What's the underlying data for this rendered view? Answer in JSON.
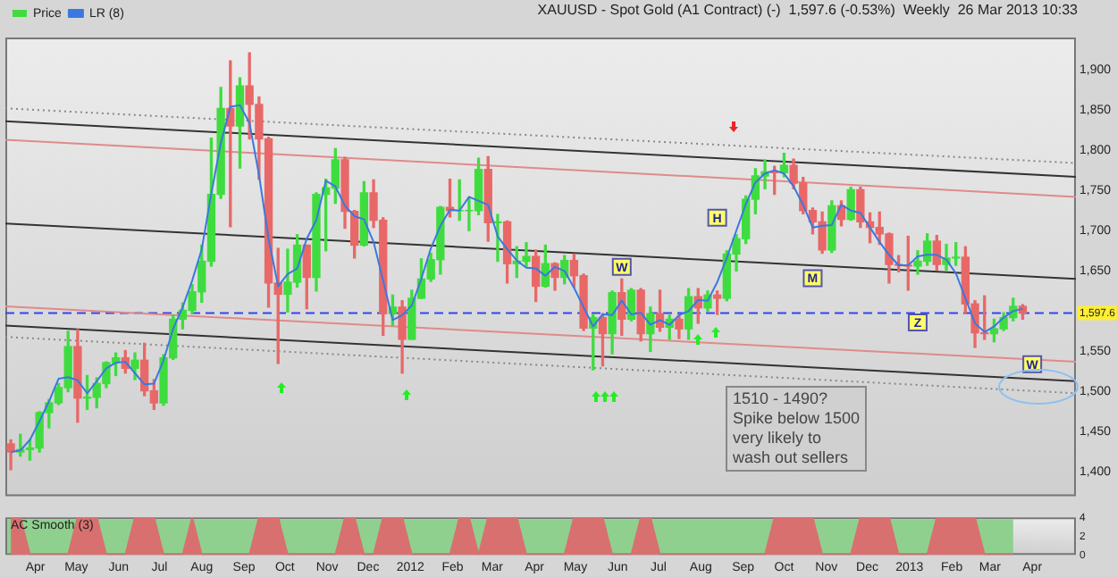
{
  "chart_data": [
    {
      "type": "candlestick",
      "title": "XAUUSD - Spot Gold (A1 Contract) (-)  1,597.6 (-0.53%)  Weekly  26 Mar 2013 10:33",
      "x": [
        "2011-03-14",
        "2011-03-21",
        "2011-03-28",
        "2011-04-04",
        "2011-04-11",
        "2011-04-18",
        "2011-04-25",
        "2011-05-02",
        "2011-05-09",
        "2011-05-16",
        "2011-05-23",
        "2011-05-30",
        "2011-06-06",
        "2011-06-13",
        "2011-06-20",
        "2011-06-27",
        "2011-07-04",
        "2011-07-11",
        "2011-07-18",
        "2011-07-25",
        "2011-08-01",
        "2011-08-08",
        "2011-08-15",
        "2011-08-22",
        "2011-08-29",
        "2011-09-05",
        "2011-09-12",
        "2011-09-19",
        "2011-09-26",
        "2011-10-03",
        "2011-10-10",
        "2011-10-17",
        "2011-10-24",
        "2011-10-31",
        "2011-11-07",
        "2011-11-14",
        "2011-11-21",
        "2011-11-28",
        "2011-12-05",
        "2011-12-12",
        "2011-12-19",
        "2011-12-26",
        "2012-01-02",
        "2012-01-09",
        "2012-01-16",
        "2012-01-23",
        "2012-01-30",
        "2012-02-06",
        "2012-02-13",
        "2012-02-20",
        "2012-02-27",
        "2012-03-05",
        "2012-03-12",
        "2012-03-19",
        "2012-03-26",
        "2012-04-02",
        "2012-04-09",
        "2012-04-16",
        "2012-04-23",
        "2012-04-30",
        "2012-05-07",
        "2012-05-14",
        "2012-05-21",
        "2012-05-28",
        "2012-06-04",
        "2012-06-11",
        "2012-06-18",
        "2012-06-25",
        "2012-07-02",
        "2012-07-09",
        "2012-07-16",
        "2012-07-23",
        "2012-07-30",
        "2012-08-06",
        "2012-08-13",
        "2012-08-20",
        "2012-08-27",
        "2012-09-03",
        "2012-09-10",
        "2012-09-17",
        "2012-09-24",
        "2012-10-01",
        "2012-10-08",
        "2012-10-15",
        "2012-10-22",
        "2012-10-29",
        "2012-11-05",
        "2012-11-12",
        "2012-11-19",
        "2012-11-26",
        "2012-12-03",
        "2012-12-10",
        "2012-12-17",
        "2012-12-24",
        "2012-12-31",
        "2013-01-07",
        "2013-01-14",
        "2013-01-21",
        "2013-01-28",
        "2013-02-04",
        "2013-02-11",
        "2013-02-18",
        "2013-02-25",
        "2013-03-04",
        "2013-03-11",
        "2013-03-18",
        "2013-03-25"
      ],
      "series": [
        {
          "name": "Price",
          "colors": [
            "#e86868",
            "#3fdc3f",
            "#3fdc3f",
            "#3fdc3f",
            "#3fdc3f",
            "#3fdc3f",
            "#3fdc3f",
            "#e86868",
            "#3fdc3f",
            "#3fdc3f",
            "#3fdc3f",
            "#3fdc3f",
            "#e86868",
            "#3fdc3f",
            "#e86868",
            "#e86868",
            "#3fdc3f",
            "#3fdc3f",
            "#3fdc3f",
            "#3fdc3f",
            "#3fdc3f",
            "#3fdc3f",
            "#3fdc3f",
            "#e86868",
            "#3fdc3f",
            "#e86868",
            "#e86868",
            "#e86868",
            "#e86868",
            "#3fdc3f",
            "#3fdc3f",
            "#e86868",
            "#3fdc3f",
            "#3fdc3f",
            "#3fdc3f",
            "#e86868",
            "#e86868",
            "#3fdc3f",
            "#e86868",
            "#e86868",
            "#3fdc3f",
            "#e86868",
            "#3fdc3f",
            "#3fdc3f",
            "#3fdc3f",
            "#3fdc3f",
            "#e86868",
            "#3fdc3f",
            "#3fdc3f",
            "#3fdc3f",
            "#e86868",
            "#3fdc3f",
            "#e86868",
            "#3fdc3f",
            "#3fdc3f",
            "#e86868",
            "#3fdc3f",
            "#e86868",
            "#3fdc3f",
            "#e86868",
            "#e86868",
            "#3fdc3f",
            "#e86868",
            "#3fdc3f",
            "#e86868",
            "#3fdc3f",
            "#e86868",
            "#3fdc3f",
            "#e86868",
            "#3fdc3f",
            "#e86868",
            "#3fdc3f",
            "#e86868",
            "#3fdc3f",
            "#e86868",
            "#3fdc3f",
            "#3fdc3f",
            "#3fdc3f",
            "#3fdc3f",
            "#3fdc3f",
            "#e86868",
            "#3fdc3f",
            "#e86868",
            "#e86868",
            "#e86868",
            "#e86868",
            "#3fdc3f",
            "#e86868",
            "#3fdc3f",
            "#e86868",
            "#e86868",
            "#e86868",
            "#e86868",
            "#e86868",
            "#e86868",
            "#3fdc3f",
            "#3fdc3f",
            "#e86868",
            "#3fdc3f",
            "#3fdc3f",
            "#e86868",
            "#e86868",
            "#e86868",
            "#3fdc3f",
            "#3fdc3f",
            "#3fdc3f",
            "#e86868"
          ],
          "ohlc": [
            [
              1435,
              1440,
              1403,
              1425
            ],
            [
              1425,
              1447,
              1420,
              1428
            ],
            [
              1428,
              1440,
              1415,
              1430
            ],
            [
              1430,
              1475,
              1425,
              1474
            ],
            [
              1474,
              1490,
              1455,
              1486
            ],
            [
              1486,
              1510,
              1484,
              1505
            ],
            [
              1505,
              1575,
              1500,
              1556
            ],
            [
              1556,
              1577,
              1462,
              1492
            ],
            [
              1492,
              1520,
              1478,
              1493
            ],
            [
              1493,
              1517,
              1480,
              1510
            ],
            [
              1510,
              1537,
              1505,
              1536
            ],
            [
              1536,
              1548,
              1520,
              1542
            ],
            [
              1542,
              1551,
              1523,
              1529
            ],
            [
              1529,
              1548,
              1515,
              1539
            ],
            [
              1539,
              1560,
              1495,
              1501
            ],
            [
              1501,
              1515,
              1478,
              1486
            ],
            [
              1486,
              1546,
              1483,
              1542
            ],
            [
              1542,
              1595,
              1540,
              1590
            ],
            [
              1590,
              1610,
              1578,
              1601
            ],
            [
              1601,
              1633,
              1597,
              1624
            ],
            [
              1624,
              1682,
              1611,
              1662
            ],
            [
              1662,
              1815,
              1656,
              1745
            ],
            [
              1745,
              1878,
              1740,
              1852
            ],
            [
              1852,
              1911,
              1705,
              1830
            ],
            [
              1830,
              1890,
              1778,
              1880
            ],
            [
              1880,
              1921,
              1814,
              1857
            ],
            [
              1857,
              1866,
              1764,
              1814
            ],
            [
              1814,
              1816,
              1605,
              1635
            ],
            [
              1635,
              1678,
              1535,
              1621
            ],
            [
              1621,
              1677,
              1599,
              1636
            ],
            [
              1636,
              1695,
              1630,
              1682
            ],
            [
              1682,
              1682,
              1603,
              1642
            ],
            [
              1642,
              1747,
              1625,
              1745
            ],
            [
              1745,
              1764,
              1675,
              1753
            ],
            [
              1753,
              1802,
              1734,
              1788
            ],
            [
              1788,
              1791,
              1703,
              1724
            ],
            [
              1724,
              1725,
              1666,
              1682
            ],
            [
              1682,
              1761,
              1681,
              1747
            ],
            [
              1747,
              1763,
              1704,
              1713
            ],
            [
              1713,
              1716,
              1570,
              1597
            ],
            [
              1597,
              1620,
              1582,
              1605
            ],
            [
              1605,
              1613,
              1523,
              1565
            ],
            [
              1565,
              1626,
              1565,
              1616
            ],
            [
              1616,
              1665,
              1616,
              1640
            ],
            [
              1640,
              1672,
              1637,
              1664
            ],
            [
              1664,
              1730,
              1646,
              1729
            ],
            [
              1729,
              1764,
              1717,
              1725
            ],
            [
              1725,
              1763,
              1713,
              1725
            ],
            [
              1725,
              1740,
              1700,
              1725
            ],
            [
              1725,
              1790,
              1720,
              1776
            ],
            [
              1776,
              1792,
              1687,
              1710
            ],
            [
              1710,
              1720,
              1662,
              1711
            ],
            [
              1711,
              1712,
              1635,
              1659
            ],
            [
              1659,
              1680,
              1642,
              1662
            ],
            [
              1662,
              1685,
              1655,
              1668
            ],
            [
              1668,
              1676,
              1612,
              1631
            ],
            [
              1631,
              1682,
              1630,
              1659
            ],
            [
              1659,
              1660,
              1626,
              1642
            ],
            [
              1642,
              1669,
              1634,
              1663
            ],
            [
              1663,
              1671,
              1630,
              1644
            ],
            [
              1644,
              1646,
              1576,
              1579
            ],
            [
              1579,
              1596,
              1527,
              1592
            ],
            [
              1592,
              1597,
              1532,
              1572
            ],
            [
              1572,
              1625,
              1547,
              1623
            ],
            [
              1623,
              1640,
              1570,
              1590
            ],
            [
              1590,
              1628,
              1588,
              1626
            ],
            [
              1626,
              1628,
              1563,
              1572
            ],
            [
              1572,
              1605,
              1550,
              1597
            ],
            [
              1597,
              1626,
              1575,
              1580
            ],
            [
              1580,
              1595,
              1565,
              1590
            ],
            [
              1590,
              1596,
              1566,
              1578
            ],
            [
              1578,
              1628,
              1565,
              1618
            ],
            [
              1618,
              1628,
              1585,
              1604
            ],
            [
              1604,
              1625,
              1600,
              1620
            ],
            [
              1620,
              1625,
              1596,
              1616
            ],
            [
              1616,
              1675,
              1613,
              1671
            ],
            [
              1671,
              1695,
              1650,
              1690
            ],
            [
              1690,
              1743,
              1684,
              1739
            ],
            [
              1739,
              1777,
              1721,
              1768
            ],
            [
              1768,
              1788,
              1752,
              1773
            ],
            [
              1773,
              1780,
              1745,
              1772
            ],
            [
              1772,
              1796,
              1767,
              1781
            ],
            [
              1781,
              1789,
              1752,
              1759
            ],
            [
              1759,
              1766,
              1721,
              1725
            ],
            [
              1725,
              1728,
              1696,
              1711
            ],
            [
              1711,
              1723,
              1672,
              1676
            ],
            [
              1676,
              1737,
              1673,
              1731
            ],
            [
              1731,
              1737,
              1706,
              1714
            ],
            [
              1714,
              1754,
              1713,
              1751
            ],
            [
              1751,
              1754,
              1704,
              1711
            ],
            [
              1711,
              1722,
              1685,
              1704
            ],
            [
              1704,
              1723,
              1683,
              1696
            ],
            [
              1696,
              1697,
              1635,
              1658
            ],
            [
              1658,
              1669,
              1649,
              1657
            ],
            [
              1657,
              1693,
              1626,
              1656
            ],
            [
              1656,
              1675,
              1646,
              1662
            ],
            [
              1662,
              1696,
              1657,
              1687
            ],
            [
              1687,
              1694,
              1651,
              1658
            ],
            [
              1658,
              1683,
              1651,
              1666
            ],
            [
              1666,
              1685,
              1657,
              1667
            ],
            [
              1667,
              1680,
              1598,
              1609
            ],
            [
              1609,
              1613,
              1555,
              1573
            ],
            [
              1573,
              1619,
              1565,
              1572
            ],
            [
              1572,
              1590,
              1562,
              1578
            ],
            [
              1578,
              1598,
              1576,
              1592
            ],
            [
              1592,
              1616,
              1588,
              1606
            ],
            [
              1606,
              1608,
              1590,
              1597.6
            ]
          ]
        },
        {
          "name": "LR (8)",
          "type": "line",
          "color": "#3a78e0",
          "values": [
            1425,
            1427,
            1440,
            1463,
            1488,
            1516,
            1518,
            1514,
            1498,
            1513,
            1529,
            1536,
            1537,
            1523,
            1509,
            1510,
            1539,
            1578,
            1605,
            1638,
            1677,
            1746,
            1809,
            1854,
            1856,
            1834,
            1769,
            1690,
            1631,
            1646,
            1653,
            1690,
            1713,
            1762,
            1755,
            1731,
            1718,
            1714,
            1686,
            1638,
            1589,
            1595,
            1607,
            1640,
            1678,
            1706,
            1726,
            1725,
            1742,
            1737,
            1732,
            1693,
            1677,
            1663,
            1654,
            1653,
            1644,
            1655,
            1650,
            1629,
            1605,
            1581,
            1596,
            1595,
            1613,
            1596,
            1598,
            1583,
            1589,
            1583,
            1595,
            1600,
            1614,
            1613,
            1636,
            1666,
            1700,
            1733,
            1760,
            1771,
            1775,
            1771,
            1755,
            1732,
            1704,
            1706,
            1707,
            1732,
            1725,
            1722,
            1704,
            1686,
            1670,
            1657,
            1657,
            1668,
            1670,
            1670,
            1664,
            1647,
            1616,
            1585,
            1574,
            1581,
            1592,
            1600,
            1603
          ]
        },
        {
          "type": "line",
          "color": "#888888",
          "line_style": "dotted",
          "x": [
            "2011-03-10",
            "2013-05-03"
          ],
          "values": [
            1852,
            1784
          ]
        },
        {
          "type": "line",
          "color": "#333333",
          "x": [
            "2011-03-10",
            "2013-05-03"
          ],
          "values": [
            1836,
            1767
          ]
        },
        {
          "type": "line",
          "color": "#e08a8a",
          "x": [
            "2011-03-10",
            "2013-05-03"
          ],
          "values": [
            1813,
            1742
          ]
        },
        {
          "type": "line",
          "color": "#333333",
          "x": [
            "2011-03-10",
            "2013-05-03"
          ],
          "values": [
            1709,
            1640
          ]
        },
        {
          "type": "line",
          "color": "#e08a8a",
          "x": [
            "2011-03-10",
            "2013-05-03"
          ],
          "values": [
            1606,
            1537
          ]
        },
        {
          "type": "line",
          "color": "#333333",
          "x": [
            "2011-03-10",
            "2013-05-03"
          ],
          "values": [
            1582,
            1513
          ]
        },
        {
          "type": "line",
          "color": "#888888",
          "line_style": "dotted",
          "x": [
            "2011-03-10",
            "2013-05-03"
          ],
          "values": [
            1568,
            1498
          ]
        }
      ],
      "xlim": [
        "2011-03-10",
        "2013-05-03"
      ],
      "ylim": [
        1370,
        1940
      ],
      "yticks": [
        {
          "value": 1400,
          "label": "1,400"
        },
        {
          "value": 1450,
          "label": "1,450"
        },
        {
          "value": 1500,
          "label": "1,500"
        },
        {
          "value": 1550,
          "label": "1,550"
        },
        {
          "value": 1650,
          "label": "1,650"
        },
        {
          "value": 1700,
          "label": "1,700"
        },
        {
          "value": 1750,
          "label": "1,750"
        },
        {
          "value": 1800,
          "label": "1,800"
        },
        {
          "value": 1850,
          "label": "1,850"
        },
        {
          "value": 1900,
          "label": "1,900"
        }
      ],
      "ref_lines": [
        {
          "axis": "y",
          "value": 1597.6,
          "label": "1,597.6",
          "color": "#3344ee",
          "line_style": "dashed"
        }
      ],
      "annotations": [
        {
          "text": "H",
          "x": "2012-08-13",
          "y": 1716
        },
        {
          "text": "W",
          "x": "2012-06-04",
          "y": 1655
        },
        {
          "text": "M",
          "x": "2012-10-22",
          "y": 1641
        },
        {
          "text": "Z",
          "x": "2013-01-07",
          "y": 1586
        },
        {
          "text": "W",
          "x": "2013-04-01",
          "y": 1534
        },
        "1510 - 1490?\nSpike below 1500\nvery likely to\nwash out sellers"
      ],
      "legend": "top left",
      "grid": false,
      "tick_labels": "y"
    },
    {
      "type": "area",
      "title": "AC Smooth (3)",
      "x": [
        "2011-03-14",
        "2011-03-21",
        "2011-03-28",
        "2011-04-04",
        "2011-04-11",
        "2011-04-18",
        "2011-04-25",
        "2011-05-02",
        "2011-05-09",
        "2011-05-16",
        "2011-05-23",
        "2011-05-30",
        "2011-06-06",
        "2011-06-13",
        "2011-06-20",
        "2011-06-27",
        "2011-07-04",
        "2011-07-11",
        "2011-07-18",
        "2011-07-25",
        "2011-08-01",
        "2011-08-08",
        "2011-08-15",
        "2011-08-22",
        "2011-08-29",
        "2011-09-05",
        "2011-09-12",
        "2011-09-19",
        "2011-09-26",
        "2011-10-03",
        "2011-10-10",
        "2011-10-17",
        "2011-10-24",
        "2011-10-31",
        "2011-11-07",
        "2011-11-14",
        "2011-11-21",
        "2011-11-28",
        "2011-12-05",
        "2011-12-12",
        "2011-12-19",
        "2011-12-26",
        "2012-01-02",
        "2012-01-09",
        "2012-01-16",
        "2012-01-23",
        "2012-01-30",
        "2012-02-06",
        "2012-02-13",
        "2012-02-20",
        "2012-02-27",
        "2012-03-05",
        "2012-03-12",
        "2012-03-19",
        "2012-03-26",
        "2012-04-02",
        "2012-04-09",
        "2012-04-16",
        "2012-04-23",
        "2012-04-30",
        "2012-05-07",
        "2012-05-14",
        "2012-05-21",
        "2012-05-28",
        "2012-06-04",
        "2012-06-11",
        "2012-06-18",
        "2012-06-25",
        "2012-07-02",
        "2012-07-09",
        "2012-07-16",
        "2012-07-23",
        "2012-07-30",
        "2012-08-06",
        "2012-08-13",
        "2012-08-20",
        "2012-08-27",
        "2012-09-03",
        "2012-09-10",
        "2012-09-17",
        "2012-09-24",
        "2012-10-01",
        "2012-10-08",
        "2012-10-15",
        "2012-10-22",
        "2012-10-29",
        "2012-11-05",
        "2012-11-12",
        "2012-11-19",
        "2012-11-26",
        "2012-12-03",
        "2012-12-10",
        "2012-12-17",
        "2012-12-24",
        "2012-12-31",
        "2013-01-07",
        "2013-01-14",
        "2013-01-21",
        "2013-01-28",
        "2013-02-04",
        "2013-02-11",
        "2013-02-18",
        "2013-02-25",
        "2013-03-04",
        "2013-03-11",
        "2013-03-18"
      ],
      "series": [
        {
          "color": "#d97070",
          "values": [
            4,
            4,
            0,
            0,
            0,
            0,
            0,
            4,
            4,
            4,
            0,
            0,
            0,
            4,
            4,
            4,
            0,
            0,
            0,
            4,
            0,
            0,
            0,
            0,
            0,
            0,
            4,
            4,
            4,
            0,
            0,
            0,
            0,
            0,
            0,
            4,
            4,
            0,
            0,
            4,
            4,
            4,
            0,
            0,
            0,
            0,
            0,
            4,
            4,
            0,
            4,
            4,
            4,
            4,
            0,
            0,
            0,
            0,
            0,
            4,
            4,
            4,
            4,
            0,
            0,
            0,
            4,
            4,
            0,
            0,
            0,
            0,
            0,
            0,
            0,
            0,
            0,
            0,
            0,
            0,
            4,
            4,
            4,
            4,
            4,
            0,
            0,
            0,
            0,
            4,
            4,
            4,
            4,
            0,
            0,
            0,
            0,
            4,
            4,
            4,
            4,
            4,
            0,
            0,
            0,
            0
          ]
        }
      ],
      "xlim": [
        "2011-03-10",
        "2013-05-03"
      ],
      "ylim": [
        0,
        4
      ],
      "yticks": [
        0,
        2,
        4
      ],
      "xticks": [
        {
          "value": "2011-04-01",
          "label": "Apr"
        },
        {
          "value": "2011-05-01",
          "label": "May"
        },
        {
          "value": "2011-06-01",
          "label": "Jun"
        },
        {
          "value": "2011-07-01",
          "label": "Jul"
        },
        {
          "value": "2011-08-01",
          "label": "Aug"
        },
        {
          "value": "2011-09-01",
          "label": "Sep"
        },
        {
          "value": "2011-10-01",
          "label": "Oct"
        },
        {
          "value": "2011-11-01",
          "label": "Nov"
        },
        {
          "value": "2011-12-01",
          "label": "Dec"
        },
        {
          "value": "2012-01-01",
          "label": "2012"
        },
        {
          "value": "2012-02-01",
          "label": "Feb"
        },
        {
          "value": "2012-03-01",
          "label": "Mar"
        },
        {
          "value": "2012-04-01",
          "label": "Apr"
        },
        {
          "value": "2012-05-01",
          "label": "May"
        },
        {
          "value": "2012-06-01",
          "label": "Jun"
        },
        {
          "value": "2012-07-01",
          "label": "Jul"
        },
        {
          "value": "2012-08-01",
          "label": "Aug"
        },
        {
          "value": "2012-09-01",
          "label": "Sep"
        },
        {
          "value": "2012-10-01",
          "label": "Oct"
        },
        {
          "value": "2012-11-01",
          "label": "Nov"
        },
        {
          "value": "2012-12-01",
          "label": "Dec"
        },
        {
          "value": "2013-01-01",
          "label": "2013"
        },
        {
          "value": "2013-02-01",
          "label": "Feb"
        },
        {
          "value": "2013-03-01",
          "label": "Mar"
        },
        {
          "value": "2013-04-01",
          "label": "Apr"
        }
      ],
      "legend": false,
      "grid": false
    }
  ]
}
